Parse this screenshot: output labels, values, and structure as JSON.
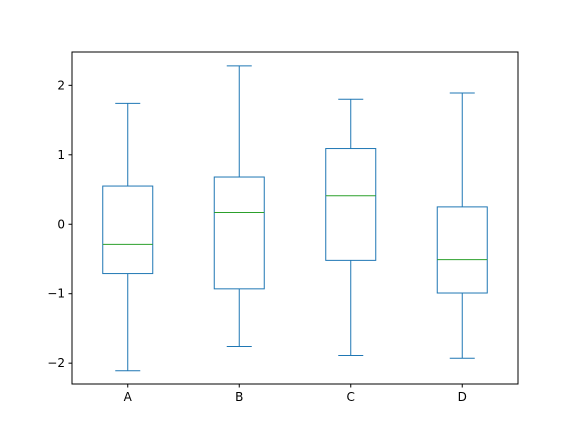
{
  "chart_data": {
    "type": "box",
    "title": "",
    "xlabel": "",
    "ylabel": "",
    "categories": [
      "A",
      "B",
      "C",
      "D"
    ],
    "boxes": [
      {
        "category": "A",
        "whisker_low": -2.11,
        "q1": -0.71,
        "median": -0.29,
        "q3": 0.55,
        "whisker_high": 1.74
      },
      {
        "category": "B",
        "whisker_low": -1.76,
        "q1": -0.93,
        "median": 0.17,
        "q3": 0.68,
        "whisker_high": 2.28
      },
      {
        "category": "C",
        "whisker_low": -1.89,
        "q1": -0.52,
        "median": 0.41,
        "q3": 1.09,
        "whisker_high": 1.8
      },
      {
        "category": "D",
        "whisker_low": -1.93,
        "q1": -0.99,
        "median": -0.51,
        "q3": 0.25,
        "whisker_high": 1.89
      }
    ],
    "yticks": [
      -2,
      -1,
      0,
      1,
      2
    ],
    "ytick_labels": [
      "−2",
      "−1",
      "0",
      "1",
      "2"
    ],
    "ylim": [
      -2.3,
      2.48
    ],
    "grid": false,
    "colors": {
      "box": "#1f77b4",
      "median": "#2ca02c",
      "axes": "#000000"
    }
  }
}
